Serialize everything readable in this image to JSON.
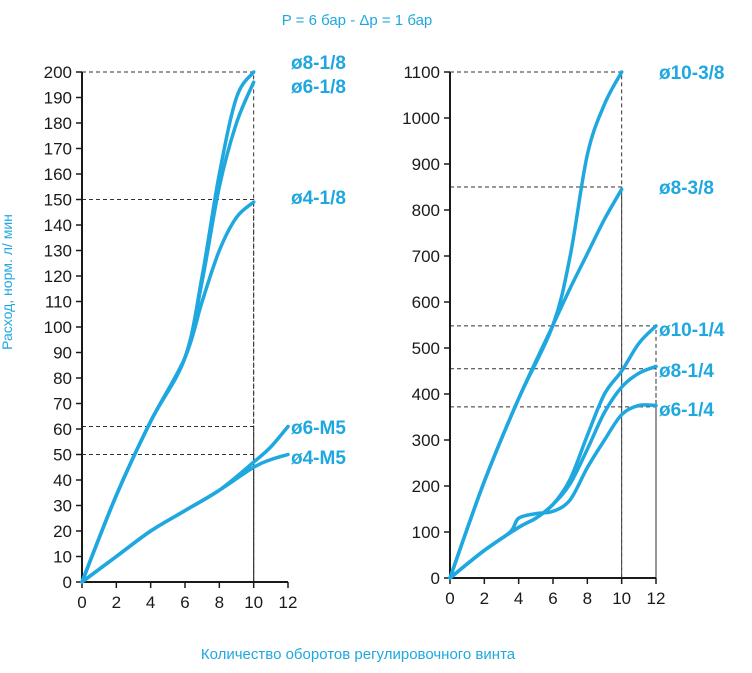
{
  "title": "P = 6 бар - Δp = 1 бар",
  "xlabel": "Количество оборотов регулировочного винта",
  "ylabel": "Расход, норм. л/ мин",
  "colors": {
    "curve": "#1fa8e0",
    "axis": "#1a1a1a"
  },
  "chart_data": [
    {
      "type": "line",
      "xlim": [
        0,
        12
      ],
      "ylim": [
        0,
        200
      ],
      "xticks": [
        0,
        2,
        4,
        6,
        8,
        10,
        12
      ],
      "yticks": [
        0,
        10,
        20,
        30,
        40,
        50,
        60,
        70,
        80,
        90,
        100,
        110,
        120,
        130,
        140,
        150,
        160,
        170,
        180,
        190,
        200
      ],
      "reference_lines": [
        {
          "y": 200,
          "x": 10
        },
        {
          "y": 150,
          "x": 10
        },
        {
          "y": 61,
          "x": 10
        },
        {
          "y": 50,
          "x": 10
        }
      ],
      "series": [
        {
          "name": "ø8-1/8",
          "x": [
            0,
            2,
            4,
            6,
            7,
            8,
            9,
            10
          ],
          "y": [
            0,
            34,
            63,
            88,
            120,
            160,
            190,
            200
          ]
        },
        {
          "name": "ø6-1/8",
          "x": [
            0,
            2,
            4,
            6,
            7,
            8,
            9,
            10
          ],
          "y": [
            0,
            34,
            63,
            88,
            118,
            155,
            180,
            196
          ]
        },
        {
          "name": "ø4-1/8",
          "x": [
            0,
            2,
            4,
            6,
            7,
            8,
            9,
            10
          ],
          "y": [
            0,
            34,
            63,
            88,
            110,
            130,
            143,
            149
          ]
        },
        {
          "name": "ø6-M5",
          "x": [
            0,
            2,
            4,
            6,
            8,
            10,
            11,
            12
          ],
          "y": [
            0,
            10,
            20,
            28,
            36,
            47,
            53,
            61
          ]
        },
        {
          "name": "ø4-M5",
          "x": [
            0,
            2,
            4,
            6,
            8,
            10,
            11,
            12
          ],
          "y": [
            0,
            10,
            20,
            28,
            36,
            45,
            48,
            50
          ]
        }
      ]
    },
    {
      "type": "line",
      "xlim": [
        0,
        12
      ],
      "ylim": [
        0,
        1100
      ],
      "xticks": [
        0,
        2,
        4,
        6,
        8,
        10,
        12
      ],
      "yticks": [
        0,
        100,
        200,
        300,
        400,
        500,
        600,
        700,
        800,
        900,
        1000,
        1100
      ],
      "reference_lines": [
        {
          "y": 1100,
          "x": 10
        },
        {
          "y": 850,
          "x": 10
        },
        {
          "y": 548,
          "x": 12
        },
        {
          "y": 455,
          "x": 12
        },
        {
          "y": 372,
          "x": 12
        }
      ],
      "series": [
        {
          "name": "ø10-3/8",
          "x": [
            0,
            2,
            4,
            6,
            7,
            8,
            9,
            10
          ],
          "y": [
            0,
            210,
            390,
            550,
            700,
            920,
            1030,
            1100
          ]
        },
        {
          "name": "ø8-3/8",
          "x": [
            0,
            2,
            4,
            6,
            7,
            8,
            9,
            10
          ],
          "y": [
            0,
            210,
            390,
            550,
            630,
            705,
            780,
            845
          ]
        },
        {
          "name": "ø10-1/4",
          "x": [
            0,
            2,
            4,
            5,
            6,
            7,
            8,
            9,
            10,
            11,
            12
          ],
          "y": [
            0,
            60,
            110,
            130,
            160,
            215,
            310,
            400,
            450,
            510,
            548
          ]
        },
        {
          "name": "ø8-1/4",
          "x": [
            0,
            2,
            4,
            5,
            6,
            7,
            8,
            9,
            10,
            11,
            12
          ],
          "y": [
            0,
            60,
            110,
            130,
            160,
            205,
            280,
            360,
            415,
            445,
            460
          ]
        },
        {
          "name": "ø6-1/4",
          "x": [
            0,
            2,
            3.5,
            4,
            5,
            6,
            7,
            8,
            9,
            10,
            11,
            12
          ],
          "y": [
            0,
            60,
            100,
            130,
            140,
            145,
            170,
            240,
            300,
            355,
            375,
            375
          ]
        }
      ]
    }
  ]
}
